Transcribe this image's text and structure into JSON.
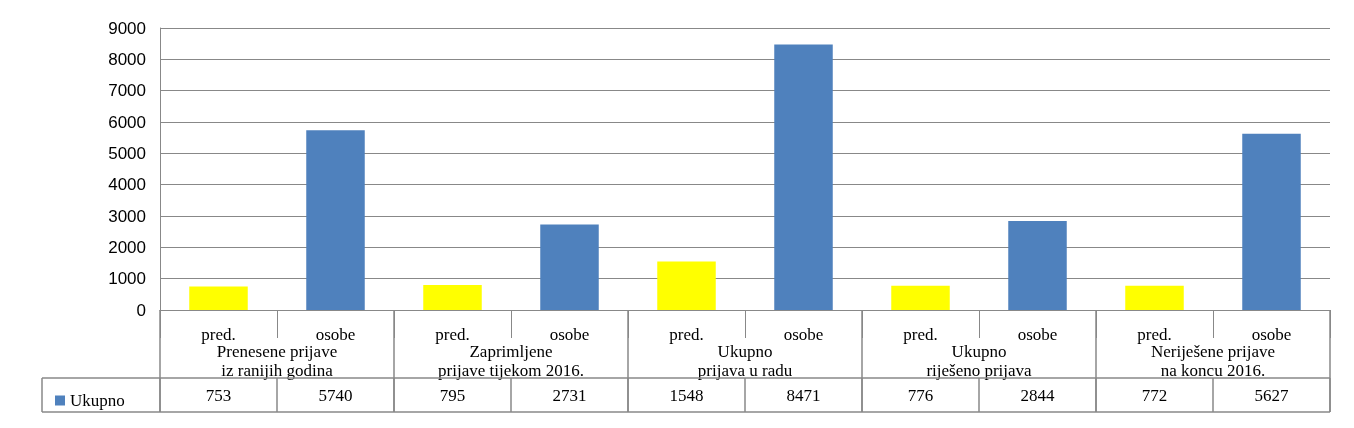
{
  "chart_data": {
    "type": "bar",
    "categories": [
      "pred.",
      "osobe",
      "pred.",
      "osobe",
      "pred.",
      "osobe",
      "pred.",
      "osobe",
      "pred.",
      "osobe"
    ],
    "annotations": [
      "Prenesene prijave\niz ranijih godina",
      "Zaprimljene\nprijave tijekom 2016.",
      "Ukupno\nprijava u radu",
      "Ukupno\nriješeno prijava",
      "Neriješene prijave\nna koncu 2016."
    ],
    "series": [
      {
        "name": "Ukupno",
        "color": "#4f81bd",
        "colors": [
          "#ffff00",
          "#4f81bd",
          "#ffff00",
          "#4f81bd",
          "#ffff00",
          "#4f81bd",
          "#ffff00",
          "#4f81bd",
          "#ffff00",
          "#4f81bd"
        ],
        "values": [
          753,
          5740,
          795,
          2731,
          1548,
          8471,
          776,
          2844,
          772,
          5627
        ]
      }
    ],
    "ylim": [
      0,
      9000
    ],
    "yticks": [
      0,
      1000,
      2000,
      3000,
      4000,
      5000,
      6000,
      7000,
      8000,
      9000
    ],
    "grid": "y",
    "legend": "bottom left",
    "data_labels": true
  }
}
